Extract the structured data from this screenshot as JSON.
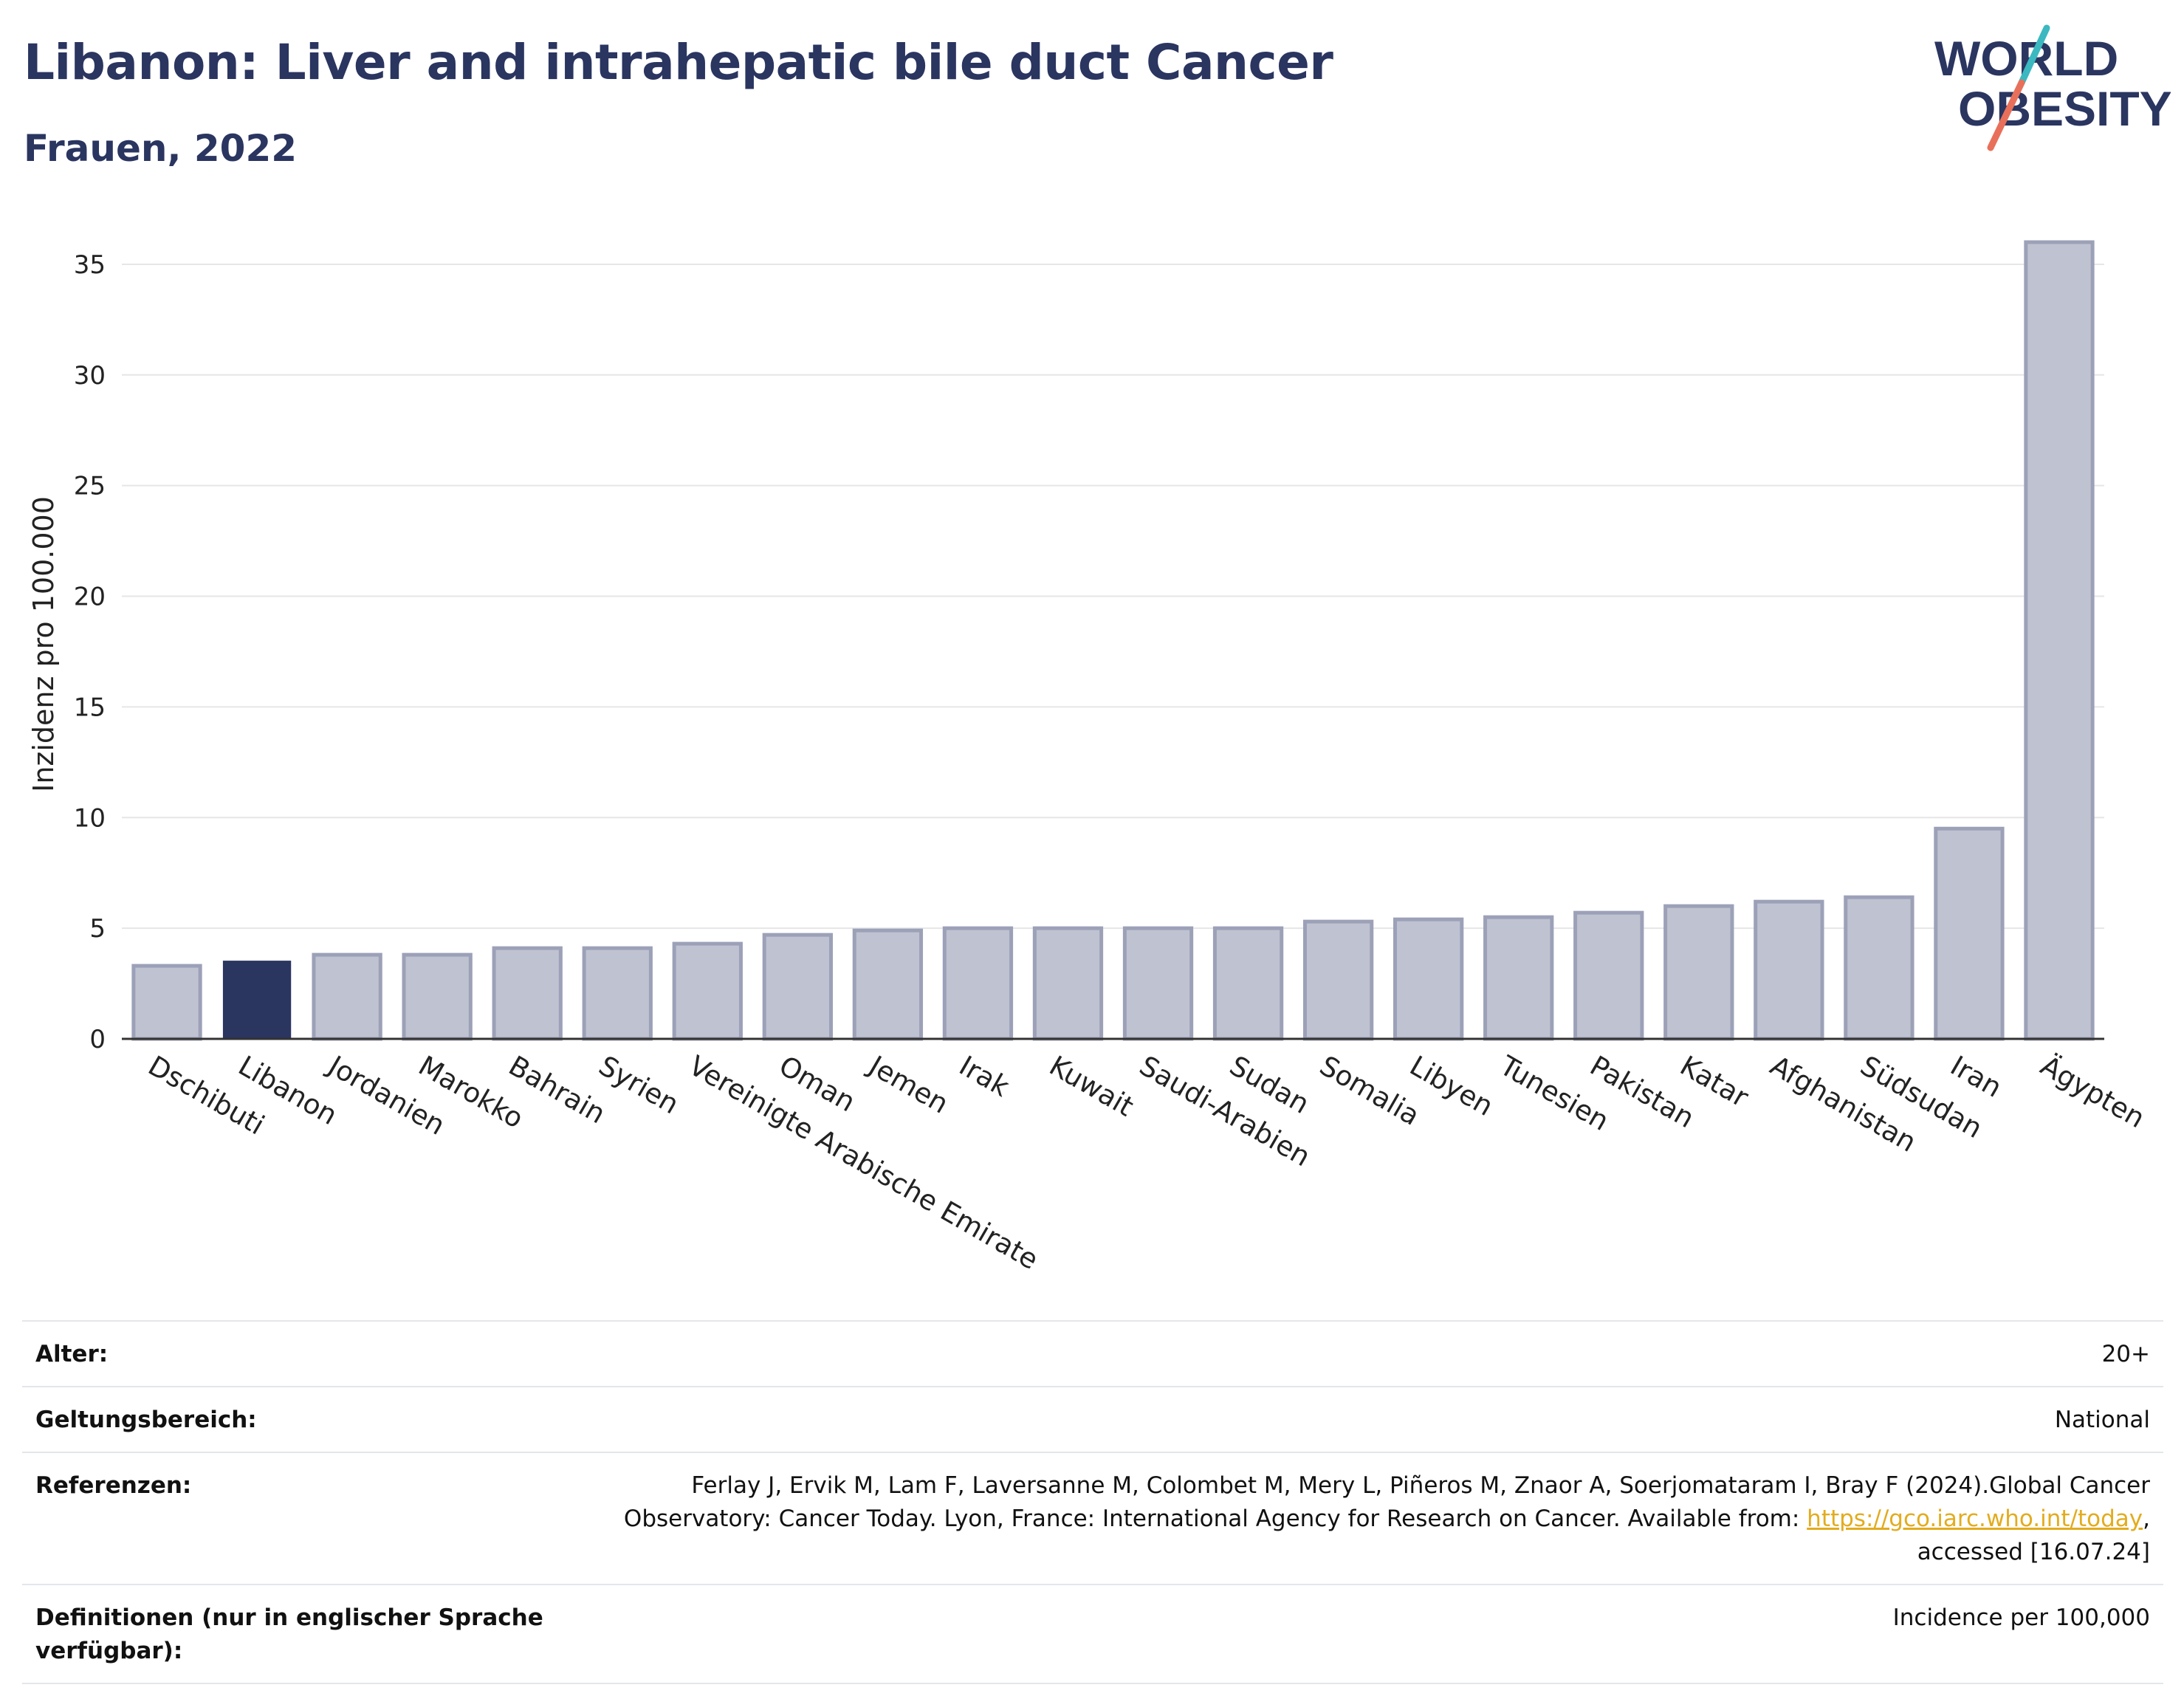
{
  "header": {
    "title": "Libanon: Liver and intrahepatic bile duct Cancer",
    "subtitle": "Frauen, 2022"
  },
  "logo": {
    "line1": "WORLD",
    "line2": "OBESITY",
    "colors": {
      "text": "#2a3560",
      "slash_teal": "#3bb8c0",
      "slash_coral": "#e8705a"
    }
  },
  "chart_data": {
    "type": "bar",
    "ylabel": "Inzidenz pro 100.000",
    "xlabel": "",
    "ylim": [
      0,
      37
    ],
    "yticks": [
      0,
      5,
      10,
      15,
      20,
      25,
      30,
      35
    ],
    "grid": true,
    "highlight": "Libanon",
    "colors": {
      "bar": "#bfc2d0",
      "bar_border": "#9ca1b8",
      "highlight": "#2a3560",
      "axis": "#333333",
      "grid": "#e6e6e6"
    },
    "categories": [
      "Dschibuti",
      "Libanon",
      "Jordanien",
      "Marokko",
      "Bahrain",
      "Syrien",
      "Vereinigte Arabische Emirate",
      "Oman",
      "Jemen",
      "Irak",
      "Kuwait",
      "Saudi-Arabien",
      "Sudan",
      "Somalia",
      "Libyen",
      "Tunesien",
      "Pakistan",
      "Katar",
      "Afghanistan",
      "Südsudan",
      "Iran",
      "Ägypten"
    ],
    "values": [
      3.3,
      3.5,
      3.8,
      3.8,
      4.1,
      4.1,
      4.3,
      4.7,
      4.9,
      5.0,
      5.0,
      5.0,
      5.0,
      5.3,
      5.4,
      5.5,
      5.7,
      6.0,
      6.2,
      6.4,
      9.5,
      36.0
    ]
  },
  "meta": {
    "age_label": "Alter:",
    "age_value": "20+",
    "scope_label": "Geltungsbereich:",
    "scope_value": "National",
    "ref_label": "Referenzen:",
    "ref_text_1": "Ferlay J, Ervik M, Lam F, Laversanne M, Colombet M, Mery L, Piñeros M, Znaor A, Soerjomataram I, Bray F (2024).Global Cancer Observatory: Cancer Today. Lyon, France: International Agency for Research on Cancer. Available from: ",
    "ref_link": "https://gco.iarc.who.int/today",
    "ref_text_2": ", accessed [16.07.24]",
    "def_label": "Definitionen (nur in englischer Sprache verfügbar):",
    "def_value": "Incidence per 100,000"
  }
}
